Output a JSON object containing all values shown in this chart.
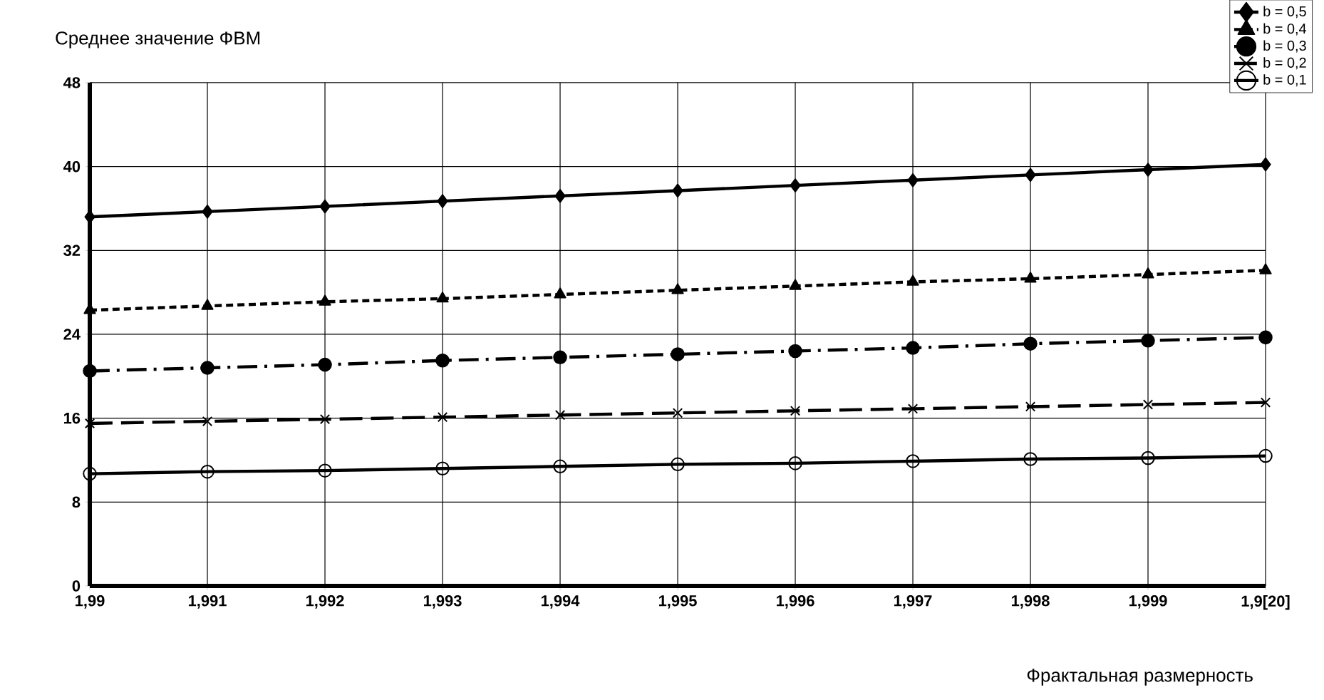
{
  "chart_data": {
    "type": "line",
    "ylabel": "Среднее значение ФВМ",
    "xlabel": "Фрактальная размерность",
    "categories": [
      "1,99",
      "1,991",
      "1,992",
      "1,993",
      "1,994",
      "1,995",
      "1,996",
      "1,997",
      "1,998",
      "1,999",
      "1,9[20]"
    ],
    "ylim": [
      0,
      48
    ],
    "yticks": [
      0,
      8,
      16,
      24,
      32,
      40,
      48
    ],
    "grid": true,
    "legend": "top right",
    "series": [
      {
        "name": "b = 0,5",
        "color": "#000000",
        "marker": "diamond",
        "line_style": "solid",
        "values": [
          35.2,
          35.7,
          36.2,
          36.7,
          37.2,
          37.7,
          38.2,
          38.7,
          39.2,
          39.7,
          40.2
        ]
      },
      {
        "name": "b = 0,4",
        "color": "#000000",
        "marker": "triangle",
        "line_style": "dashed",
        "values": [
          26.3,
          26.7,
          27.1,
          27.4,
          27.8,
          28.2,
          28.6,
          29.0,
          29.3,
          29.7,
          30.1
        ]
      },
      {
        "name": "b = 0,3",
        "color": "#000000",
        "marker": "circle",
        "line_style": "dashdot",
        "values": [
          20.5,
          20.8,
          21.1,
          21.5,
          21.8,
          22.1,
          22.4,
          22.7,
          23.1,
          23.4,
          23.7
        ]
      },
      {
        "name": "b = 0,2",
        "color": "#000000",
        "marker": "cross",
        "line_style": "longdashed",
        "values": [
          15.5,
          15.7,
          15.9,
          16.1,
          16.3,
          16.5,
          16.7,
          16.9,
          17.1,
          17.3,
          17.5
        ]
      },
      {
        "name": "b = 0,1",
        "color": "#000000",
        "marker": "circle",
        "line_style": "solid",
        "values": [
          10.7,
          10.9,
          11.0,
          11.2,
          11.4,
          11.6,
          11.7,
          11.9,
          12.1,
          12.2,
          12.4
        ]
      }
    ]
  }
}
